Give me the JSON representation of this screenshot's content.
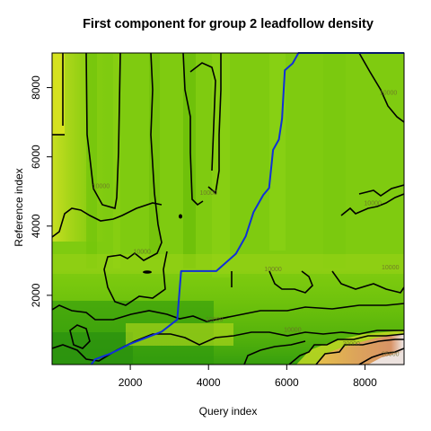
{
  "chart_data": {
    "type": "heatmap",
    "title": "First component for group 2 leadfollow density",
    "xlabel": "Query index",
    "ylabel": "Reference index",
    "xlim": [
      0,
      9000
    ],
    "ylim": [
      0,
      9000
    ],
    "xticks": [
      2000,
      4000,
      6000,
      8000
    ],
    "yticks": [
      2000,
      4000,
      6000,
      8000
    ],
    "xtick_labels": [
      "2000",
      "4000",
      "6000",
      "8000"
    ],
    "ytick_labels": [
      "2000",
      "4000",
      "6000",
      "8000"
    ],
    "colormap": [
      "#2f9a0e",
      "#56b800",
      "#7fcb10",
      "#c9df22",
      "#e6c04a",
      "#d99a5c",
      "#f2f2f2"
    ],
    "contour_labels": [
      {
        "text": "10000",
        "x": 8600,
        "y": 7800
      },
      {
        "text": "10000",
        "x": 1250,
        "y": 5100
      },
      {
        "text": "10000",
        "x": 4000,
        "y": 4900
      },
      {
        "text": "10000",
        "x": 8200,
        "y": 4600
      },
      {
        "text": "10000",
        "x": 2300,
        "y": 3200
      },
      {
        "text": "10000",
        "x": 5650,
        "y": 2700
      },
      {
        "text": "10000",
        "x": 8650,
        "y": 2750
      },
      {
        "text": "10000",
        "x": 4150,
        "y": 1250
      },
      {
        "text": "10000",
        "x": 6150,
        "y": 950
      },
      {
        "text": "20000",
        "x": 7650,
        "y": 550
      },
      {
        "text": "25000",
        "x": 8650,
        "y": 250
      }
    ],
    "series": [
      {
        "type": "warping-path",
        "color": "#1030d8",
        "x": [
          1000,
          1100,
          1500,
          2000,
          2800,
          3200,
          3300,
          3400,
          4200,
          4700,
          4950,
          5150,
          5400,
          5550,
          5650,
          5800,
          5880,
          5950,
          6150,
          6300,
          9000
        ],
        "y": [
          0,
          150,
          320,
          600,
          950,
          1300,
          2700,
          2700,
          2700,
          3200,
          3700,
          4400,
          4900,
          5100,
          6200,
          6500,
          7100,
          8500,
          8700,
          9000,
          9000
        ]
      }
    ]
  }
}
